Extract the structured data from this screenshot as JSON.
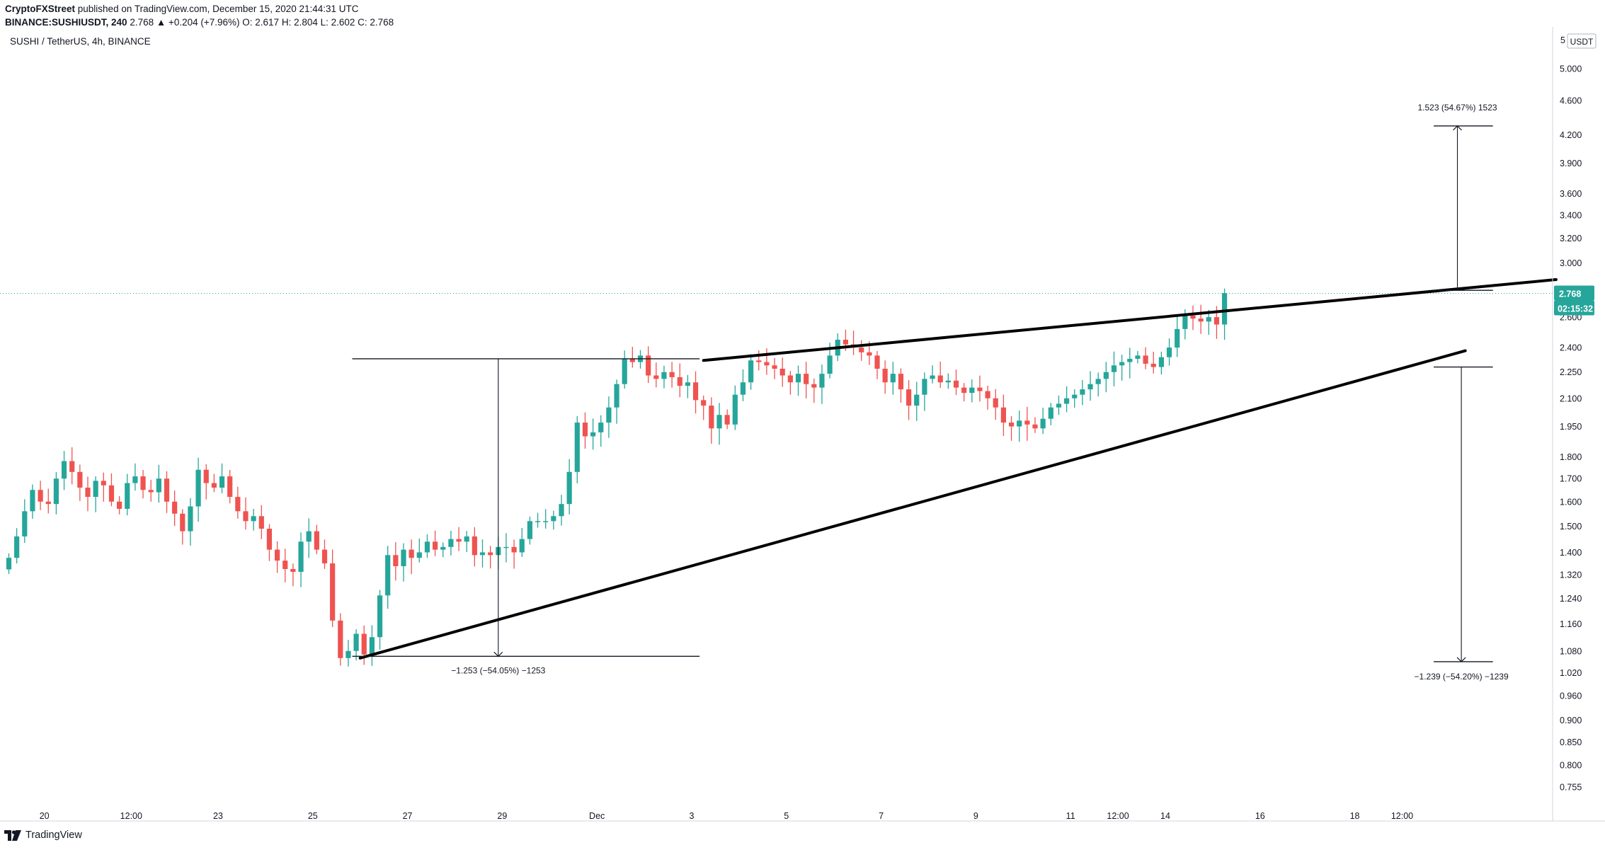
{
  "header": {
    "author": "CryptoFXStreet",
    "published": "published on TradingView.com, December 15, 2020 21:44:31 UTC",
    "symbol_line": "BINANCE:SUSHIUSDT, 240",
    "quote": "2.768 ▲ +0.204 (+7.96%) O: 2.617 H: 2.804 L: 2.602 C: 2.768"
  },
  "symbol_title": "SUSHI / TetherUS, 4h, BINANCE",
  "footer": {
    "brand": "TradingView"
  },
  "colors": {
    "up": "#26a69a",
    "down": "#ef5350",
    "line": "#000000",
    "price_tag": "#26a69a",
    "text": "#131722"
  },
  "chart_data": {
    "type": "candlestick",
    "y_scale": "log",
    "ylim": [
      0.72,
      5.2
    ],
    "currency_label": "USDT",
    "y_ticks": [
      5.0,
      4.6,
      4.2,
      3.9,
      3.6,
      3.4,
      3.2,
      3.0,
      2.6,
      2.4,
      2.25,
      2.1,
      1.95,
      1.8,
      1.7,
      1.6,
      1.5,
      1.4,
      1.32,
      1.24,
      1.16,
      1.08,
      1.02,
      0.96,
      0.9,
      0.85,
      0.8,
      0.755
    ],
    "y_tick_labels": [
      "5.000",
      "4.600",
      "4.200",
      "3.900",
      "3.600",
      "3.400",
      "3.200",
      "3.000",
      "2.600",
      "2.400",
      "2.250",
      "2.100",
      "1.950",
      "1.800",
      "1.700",
      "1.600",
      "1.500",
      "1.400",
      "1.320",
      "1.240",
      "1.160",
      "1.080",
      "1.020",
      "0.960",
      "0.900",
      "0.850",
      "0.800",
      "0.755"
    ],
    "top_partial_tick": "5",
    "x_ticks": [
      {
        "label": "20",
        "bar": 4.5
      },
      {
        "label": "12:00",
        "bar": 15.5
      },
      {
        "label": "23",
        "bar": 26.5
      },
      {
        "label": "25",
        "bar": 38.5
      },
      {
        "label": "27",
        "bar": 50.5
      },
      {
        "label": "29",
        "bar": 62.5
      },
      {
        "label": "Dec",
        "bar": 74.5
      },
      {
        "label": "3",
        "bar": 86.5
      },
      {
        "label": "5",
        "bar": 98.5
      },
      {
        "label": "7",
        "bar": 110.5
      },
      {
        "label": "9",
        "bar": 122.5
      },
      {
        "label": "11",
        "bar": 134.5
      },
      {
        "label": "12:00",
        "bar": 140.5
      },
      {
        "label": "14",
        "bar": 146.5
      },
      {
        "label": "16",
        "bar": 158.5
      },
      {
        "label": "18",
        "bar": 170.5
      },
      {
        "label": "12:00",
        "bar": 176.5
      }
    ],
    "last_price": 2.768,
    "last_price_label": "2.768",
    "countdown": "02:15:32",
    "series_close": [
      1.38,
      1.46,
      1.56,
      1.65,
      1.6,
      1.59,
      1.7,
      1.78,
      1.73,
      1.66,
      1.62,
      1.69,
      1.67,
      1.6,
      1.57,
      1.68,
      1.71,
      1.65,
      1.64,
      1.7,
      1.6,
      1.55,
      1.48,
      1.58,
      1.74,
      1.68,
      1.66,
      1.71,
      1.62,
      1.56,
      1.52,
      1.54,
      1.49,
      1.41,
      1.37,
      1.34,
      1.33,
      1.44,
      1.48,
      1.41,
      1.36,
      1.17,
      1.06,
      1.08,
      1.13,
      1.07,
      1.12,
      1.25,
      1.39,
      1.35,
      1.41,
      1.38,
      1.4,
      1.44,
      1.41,
      1.42,
      1.45,
      1.44,
      1.46,
      1.39,
      1.4,
      1.39,
      1.42,
      1.42,
      1.4,
      1.45,
      1.52,
      1.52,
      1.52,
      1.54,
      1.59,
      1.73,
      1.97,
      1.9,
      1.92,
      1.97,
      2.05,
      2.18,
      2.33,
      2.31,
      2.35,
      2.23,
      2.21,
      2.25,
      2.22,
      2.17,
      2.19,
      2.09,
      2.06,
      1.94,
      2.01,
      1.96,
      2.12,
      2.19,
      2.32,
      2.31,
      2.29,
      2.27,
      2.23,
      2.19,
      2.24,
      2.18,
      2.16,
      2.24,
      2.35,
      2.45,
      2.42,
      2.4,
      2.37,
      2.35,
      2.27,
      2.19,
      2.24,
      2.15,
      2.06,
      2.12,
      2.21,
      2.23,
      2.19,
      2.2,
      2.16,
      2.13,
      2.16,
      2.14,
      2.1,
      2.05,
      1.97,
      1.95,
      1.98,
      1.96,
      1.94,
      1.99,
      2.05,
      2.07,
      2.1,
      2.12,
      2.15,
      2.18,
      2.21,
      2.25,
      2.29,
      2.31,
      2.33,
      2.35,
      2.3,
      2.28,
      2.34,
      2.4,
      2.52,
      2.61,
      2.59,
      2.57,
      2.6,
      2.55,
      2.77
    ]
  },
  "annotations": {
    "wedge_upper": {
      "from": [
        88.0,
        2.32
      ],
      "to": [
        196.0,
        2.87
      ]
    },
    "wedge_lower": {
      "from": [
        44.5,
        1.06
      ],
      "to": [
        184.5,
        2.38
      ]
    },
    "left_measure": {
      "bar": 62.0,
      "top": 2.33,
      "bottom": 1.065,
      "line_start": 43.5,
      "line_end": 87.5,
      "label": "−1.253 (−54.05%) −1253"
    },
    "right_up_measure": {
      "bar": 183.5,
      "bottom": 2.79,
      "top": 4.3,
      "line_start": 180.5,
      "line_end": 188.0,
      "label": "1.523 (54.67%) 1523"
    },
    "right_down_measure": {
      "bar": 184.0,
      "top": 2.28,
      "bottom": 1.05,
      "line_start": 180.5,
      "line_end": 188.0,
      "label": "−1.239 (−54.20%) −1239"
    }
  }
}
